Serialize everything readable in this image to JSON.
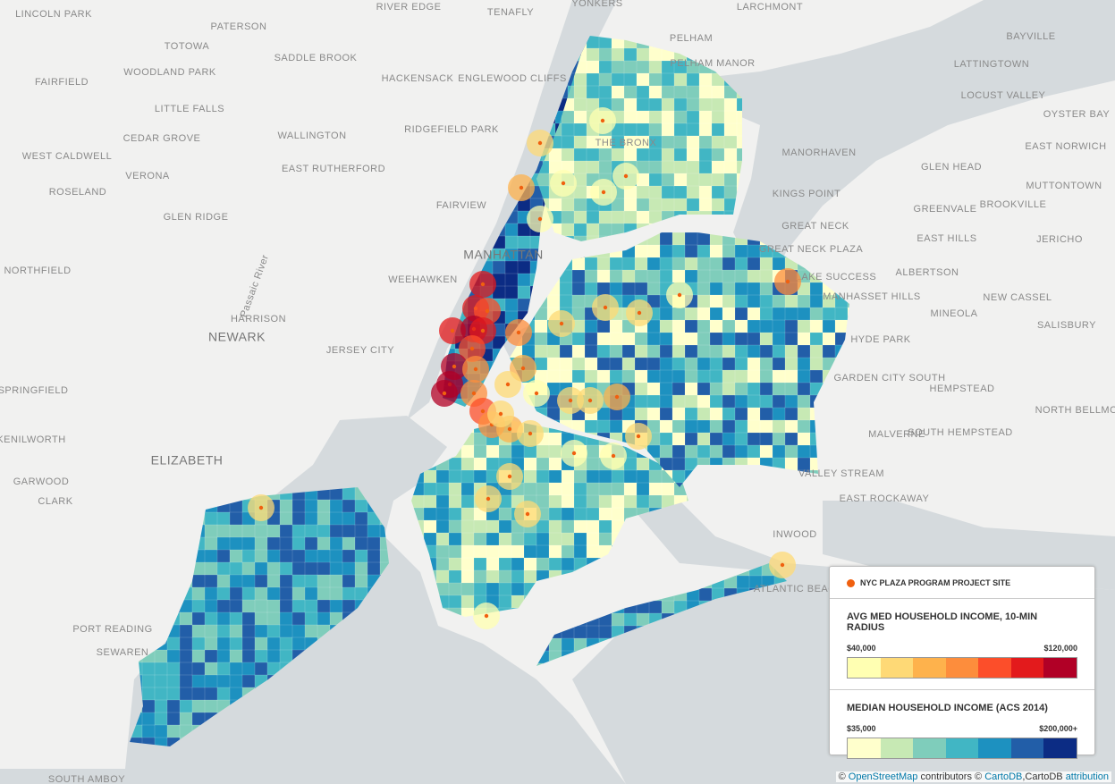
{
  "places": [
    "LINCOLN PARK",
    "PATERSON",
    "RIVER EDGE",
    "TENAFLY",
    "YONKERS",
    "LARCHMONT",
    "BAYVILLE",
    "TOTOWA",
    "SADDLE BROOK",
    "PELHAM",
    "PELHAM MANOR",
    "WOODLAND PARK",
    "LATTINGTOWN",
    "HACKENSACK",
    "ENGLEWOOD CLIFFS",
    "FAIRFIELD",
    "LOCUST VALLEY",
    "LITTLE FALLS",
    "CEDAR GROVE",
    "WALLINGTON",
    "RIDGEFIELD PARK",
    "OYSTER BAY",
    "EAST NORWICH",
    "WEST CALDWELL",
    "VERONA",
    "EAST RUTHERFORD",
    "MANORHAVEN",
    "GLEN HEAD",
    "ROSELAND",
    "KINGS POINT",
    "MUTTONTOWN",
    "GLEN RIDGE",
    "FAIRVIEW",
    "GREENVALE",
    "BROOKVILLE",
    "GREAT NECK",
    "GREAT NECK PLAZA",
    "EAST HILLS",
    "JERICHO",
    "NORTHFIELD",
    "WEEHAWKEN",
    "MANHATTAN",
    "LAKE SUCCESS",
    "ALBERTSON",
    "MANHASSET HILLS",
    "NEW CASSEL",
    "HARRISON",
    "MINEOLA",
    "SALISBURY",
    "NEWARK",
    "JERSEY CITY",
    "HYDE PARK",
    "GARDEN CITY SOUTH",
    "HEMPSTEAD",
    "SPRINGFIELD",
    "NORTH BELLMORE",
    "SOUTH HEMPSTEAD",
    "KENILWORTH",
    "MALVERNE",
    "ELIZABETH",
    "VALLEY STREAM",
    "GARWOOD",
    "CLARK",
    "EAST ROCKAWAY",
    "INWOOD",
    "ATLANTIC BEACH",
    "PORT READING",
    "SEWAREN",
    "SOUTH AMBOY",
    "Passaic River",
    "THE BRONX"
  ],
  "legend": {
    "site_label": "NYC PLAZA PROGRAM PROJECT SITE",
    "site_color": "#f0600f",
    "radius": {
      "title": "AVG MED HOUSEHOLD INCOME, 10-MIN RADIUS",
      "low": "$40,000",
      "high": "$120,000",
      "colors": [
        "#ffffb2",
        "#fed976",
        "#feb24c",
        "#fd8d3c",
        "#fc4e2a",
        "#e31a1c",
        "#b10026"
      ]
    },
    "tract": {
      "title": "MEDIAN HOUSEHOLD INCOME (ACS 2014)",
      "low": "$35,000",
      "high": "$200,000+",
      "colors": [
        "#ffffcc",
        "#c7e9b4",
        "#7fcdbb",
        "#41b6c4",
        "#1d91c0",
        "#225ea8",
        "#0c2c84"
      ]
    }
  },
  "attribution": {
    "c1": "©",
    "osm": "OpenStreetMap",
    "mid": "contributors ©",
    "carto": "CartoDB",
    "carto2": ",CartoDB",
    "attr": "attribution"
  }
}
